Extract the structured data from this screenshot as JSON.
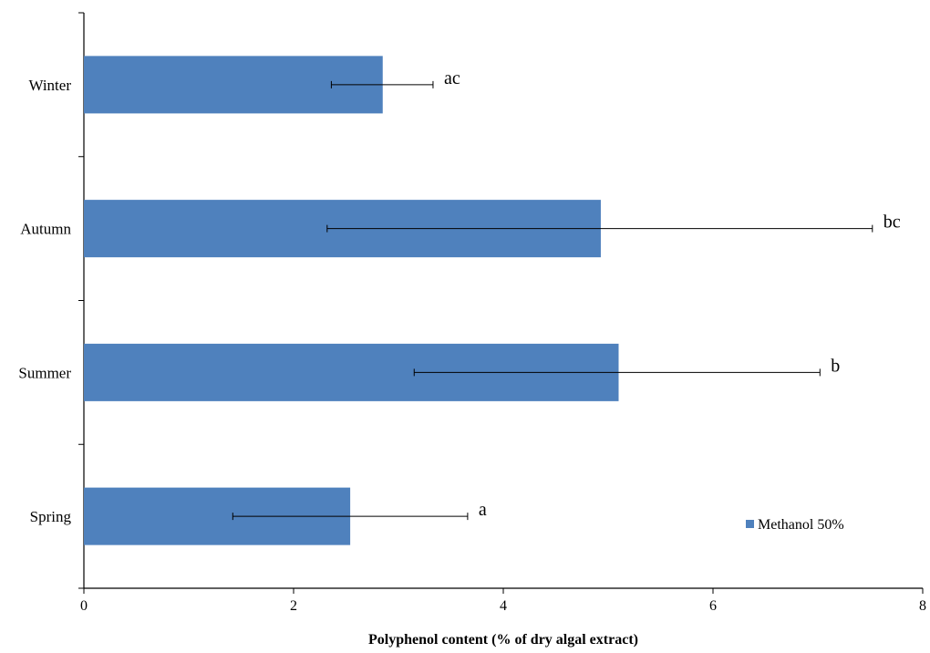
{
  "chart_data": {
    "type": "bar",
    "orientation": "horizontal",
    "categories": [
      "Spring",
      "Summer",
      "Autumn",
      "Winter"
    ],
    "series": [
      {
        "name": "Methanol 50%",
        "values": [
          2.54,
          5.1,
          4.93,
          2.85
        ],
        "error_low": [
          1.42,
          3.15,
          2.32,
          2.36
        ],
        "error_high": [
          3.66,
          7.02,
          7.52,
          3.33
        ],
        "color": "#4f81bd"
      }
    ],
    "significance_labels": [
      "a",
      "b",
      "bc",
      "ac"
    ],
    "xlabel": "Polyphenol content (% of dry algal extract)",
    "ylabel": "",
    "title": "",
    "xlim": [
      0,
      8
    ],
    "x_ticks": [
      0,
      2,
      4,
      6,
      8
    ],
    "grid": false,
    "legend": {
      "position": "bottom-right",
      "entries": [
        "Methanol 50%"
      ]
    }
  }
}
